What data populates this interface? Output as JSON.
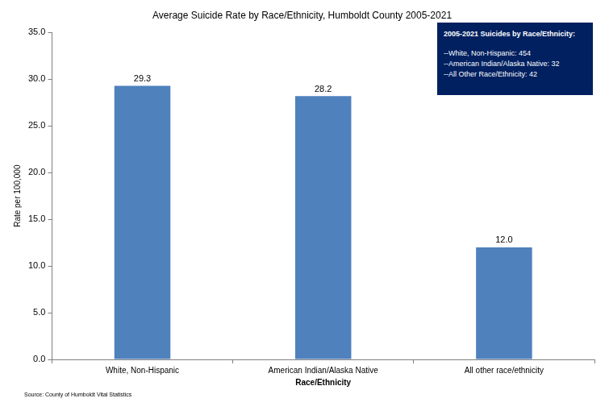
{
  "chart_data": {
    "type": "bar",
    "title": "Average Suicide Rate by Race/Ethnicity, Humboldt County 2005-2021",
    "x_label": "Race/Ethnicity",
    "y_label": "Rate per 100,000",
    "categories": [
      "White, Non-Hispanic",
      "American Indian/Alaska Native",
      "All other race/ethnicity"
    ],
    "values": [
      29.3,
      28.2,
      12.0
    ],
    "value_labels": [
      "29.3",
      "28.2",
      "12.0"
    ],
    "data_labels": true,
    "color": "#4f81bd",
    "ylim": [
      0,
      35
    ],
    "yticks": [
      {
        "value": 0,
        "label": "0.0"
      },
      {
        "value": 5,
        "label": "5.0"
      },
      {
        "value": 10,
        "label": "10.0"
      },
      {
        "value": 15,
        "label": "15.0"
      },
      {
        "value": 20,
        "label": "20.0"
      },
      {
        "value": 25,
        "label": "25.0"
      },
      {
        "value": 30,
        "label": "30.0"
      },
      {
        "value": 35,
        "label": "35.0"
      }
    ],
    "grid": false,
    "annotation": {
      "title": "2005-2021 Suicides by Race/Ethnicity:",
      "lines": [
        "--White, Non-Hispanic:  454",
        "--American Indian/Alaska Native:  32",
        "--All Other Race/Ethnicity:  42"
      ]
    },
    "source": "Source:  County of Humboldt Vital Statistics"
  }
}
